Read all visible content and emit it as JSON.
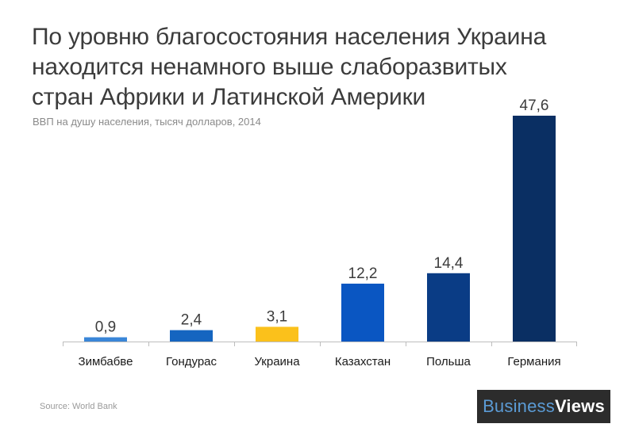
{
  "chart_data": {
    "type": "bar",
    "title": "По уровню благосостояния населения Украина находится ненамного выше слаборазвитых стран Африки и Латинской Америки",
    "subtitle": "ВВП на душу населения, тысяч долларов, 2014",
    "categories": [
      "Зимбабве",
      "Гондурас",
      "Украина",
      "Казахстан",
      "Польша",
      "Германия"
    ],
    "values": [
      0.9,
      2.4,
      3.1,
      12.2,
      14.4,
      47.6
    ],
    "value_labels": [
      "0,9",
      "2,4",
      "3,1",
      "12,2",
      "14,4",
      "47,6"
    ],
    "colors": [
      "#3a86d8",
      "#1565c0",
      "#fbc11b",
      "#0a56c2",
      "#0a3c85",
      "#0a2f63"
    ],
    "ylim": [
      0,
      47.6
    ],
    "grid": false,
    "legend": "none"
  },
  "footer": {
    "source": "Source: World Bank",
    "brand_part1": "Business",
    "brand_part2": "Views"
  }
}
